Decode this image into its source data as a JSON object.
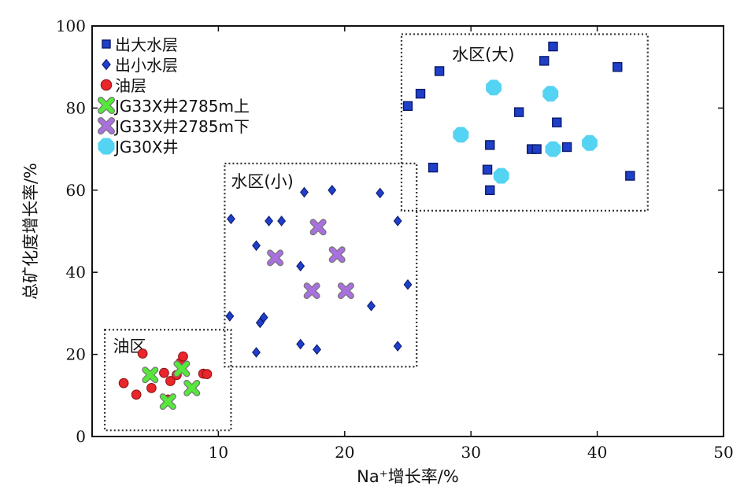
{
  "chart_data": {
    "type": "scatter",
    "xlabel": "Na⁺增长率/%",
    "ylabel": "总矿化度增长率/%",
    "xlim": [
      0,
      50
    ],
    "ylim": [
      0,
      100
    ],
    "xticks": [
      10,
      20,
      30,
      40,
      50
    ],
    "yticks": [
      0,
      20,
      40,
      60,
      80,
      100
    ],
    "grid": false,
    "legend_position": "top-left",
    "regions": [
      {
        "label": "油区",
        "x": [
          1,
          11
        ],
        "y": [
          1.5,
          26
        ]
      },
      {
        "label": "水区(小)",
        "x": [
          10.5,
          25.7
        ],
        "y": [
          17,
          66.5
        ]
      },
      {
        "label": "水区(大)",
        "x": [
          24.5,
          44
        ],
        "y": [
          55,
          98
        ]
      }
    ],
    "series": [
      {
        "name": "出大水层",
        "marker": "square",
        "color": "#1f3fc8",
        "points": [
          [
            25,
            80.5
          ],
          [
            26,
            83.5
          ],
          [
            27.5,
            89
          ],
          [
            27,
            65.5
          ],
          [
            31.5,
            71
          ],
          [
            31.3,
            65
          ],
          [
            31.5,
            60
          ],
          [
            33.8,
            79
          ],
          [
            34.8,
            70
          ],
          [
            35.2,
            70
          ],
          [
            35.8,
            91.5
          ],
          [
            36.5,
            95
          ],
          [
            36.8,
            76.5
          ],
          [
            37.6,
            70.5
          ],
          [
            41.6,
            90
          ],
          [
            42.6,
            63.5
          ]
        ]
      },
      {
        "name": "出小水层",
        "marker": "diamond",
        "color": "#1f3fc8",
        "points": [
          [
            11,
            53
          ],
          [
            10.9,
            29.3
          ],
          [
            13,
            46.5
          ],
          [
            13.3,
            27.7
          ],
          [
            13.6,
            29
          ],
          [
            14,
            52.5
          ],
          [
            15,
            52.5
          ],
          [
            13,
            20.5
          ],
          [
            16.5,
            41.5
          ],
          [
            16.5,
            22.5
          ],
          [
            16.8,
            59.5
          ],
          [
            17.8,
            21.2
          ],
          [
            19,
            60
          ],
          [
            22.1,
            31.8
          ],
          [
            22.8,
            59.3
          ],
          [
            24.2,
            52.5
          ],
          [
            24.2,
            22
          ],
          [
            25,
            37
          ]
        ]
      },
      {
        "name": "油层",
        "marker": "circle",
        "color": "#e8262b",
        "points": [
          [
            2.5,
            13
          ],
          [
            3.5,
            10.2
          ],
          [
            4,
            20.2
          ],
          [
            4.7,
            11.8
          ],
          [
            5.7,
            15.5
          ],
          [
            6.2,
            13.5
          ],
          [
            6.7,
            15
          ],
          [
            7,
            18
          ],
          [
            7.2,
            19.5
          ],
          [
            8.8,
            15.3
          ],
          [
            9.1,
            15.2
          ],
          [
            6,
            9
          ]
        ]
      },
      {
        "name": "JG33X井2785m上",
        "marker": "x",
        "color": "#55e83b",
        "points": [
          [
            4.6,
            15
          ],
          [
            6,
            8.5
          ],
          [
            7.1,
            16.5
          ],
          [
            7.9,
            11.8
          ]
        ]
      },
      {
        "name": "JG33X井2785m下",
        "marker": "x",
        "color": "#a970e0",
        "points": [
          [
            14.5,
            43.5
          ],
          [
            17.4,
            35.5
          ],
          [
            17.9,
            51
          ],
          [
            19.4,
            44.3
          ],
          [
            20.1,
            35.5
          ]
        ]
      },
      {
        "name": "JG30X井",
        "marker": "octagon",
        "color": "#55d3f2",
        "points": [
          [
            29.2,
            73.5
          ],
          [
            31.8,
            85
          ],
          [
            32.4,
            63.5
          ],
          [
            36.3,
            83.5
          ],
          [
            36.5,
            70
          ],
          [
            39.4,
            71.5
          ]
        ]
      }
    ]
  }
}
